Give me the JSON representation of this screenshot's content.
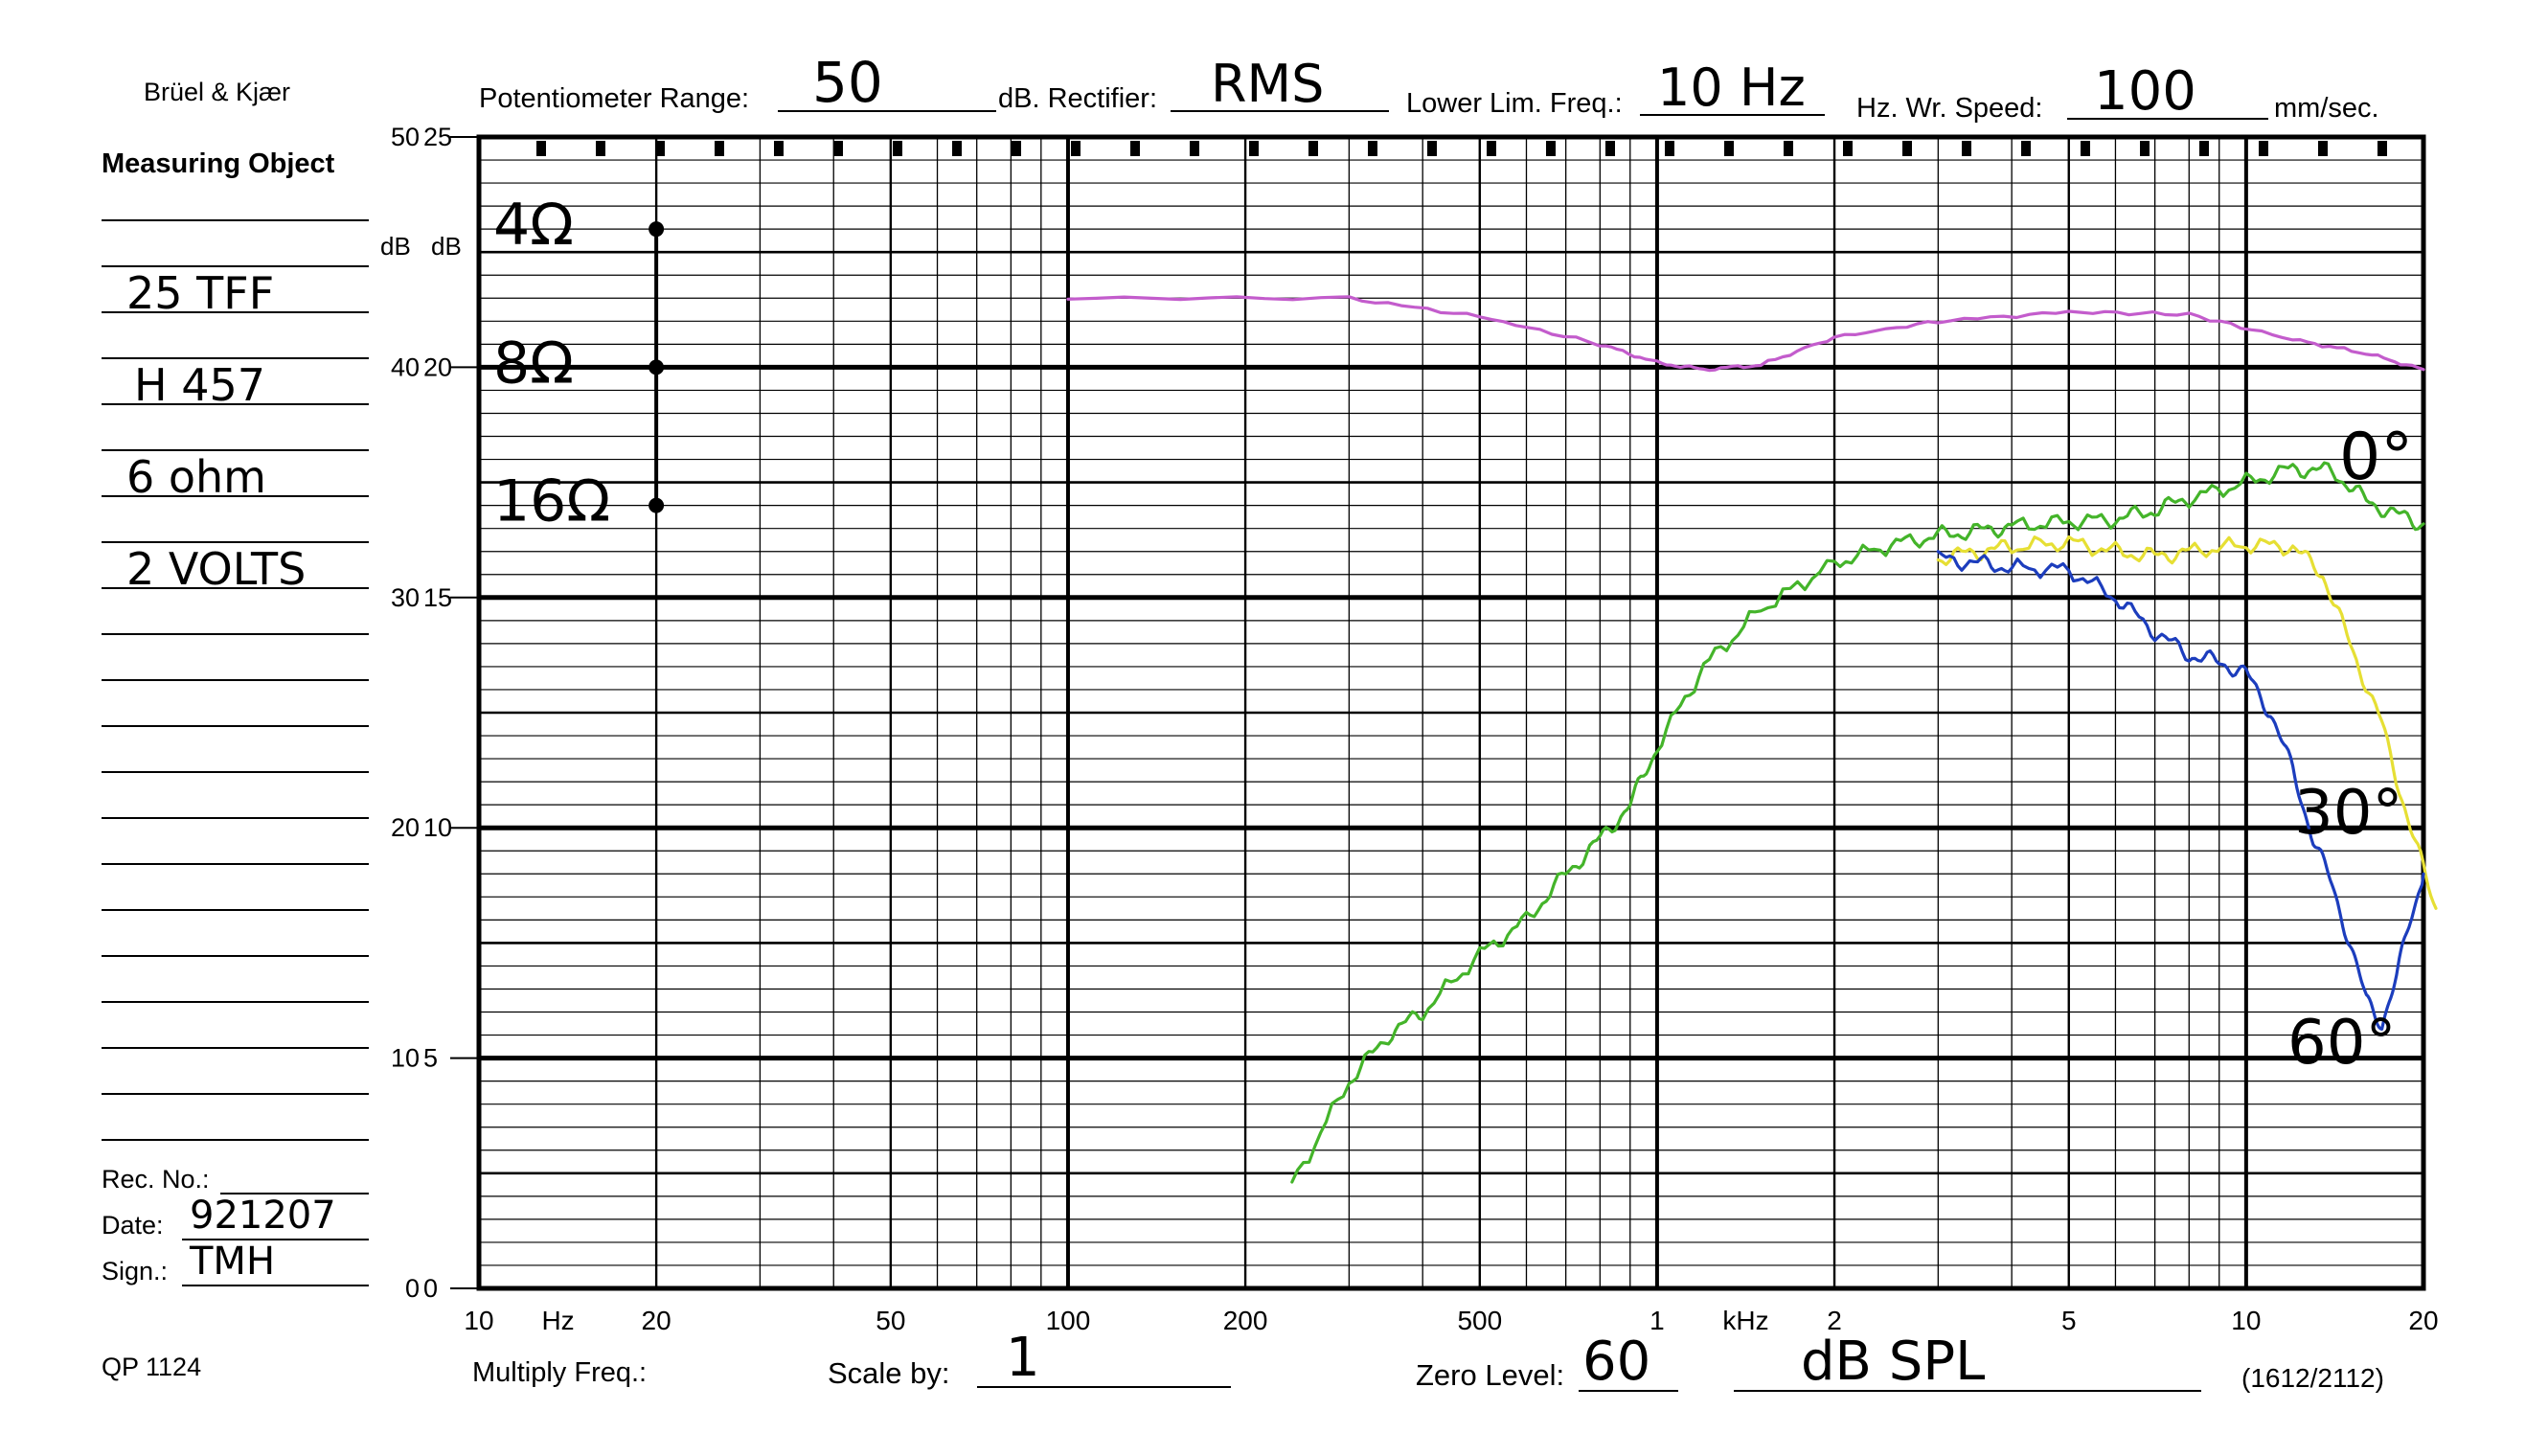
{
  "form": {
    "brand": "Brüel & Kjær",
    "measuring_object_label": "Measuring Object",
    "measuring_object_lines": [
      "25 TFF",
      "H 457",
      "6 ohm",
      "2 VOLTS"
    ],
    "rec_no_label": "Rec. No.:",
    "rec_no_value": "",
    "date_label": "Date:",
    "date_value": "921207",
    "sign_label": "Sign.:",
    "sign_value": "TMH",
    "form_code": "QP 1124",
    "potentiometer_label": "Potentiometer Range:",
    "potentiometer_value": "50",
    "db_rectifier_label": "dB. Rectifier:",
    "rectifier_value": "RMS",
    "lower_lim_label": "Lower Lim. Freq.:",
    "lower_lim_value": "10 Hz",
    "hz_wr_speed_label": "Hz. Wr. Speed:",
    "speed_value": "100",
    "speed_unit": "mm/sec.",
    "multiply_freq_label": "Multiply Freq.:",
    "scale_by_label": "Scale by:",
    "scale_by_value": "1",
    "zero_level_label": "Zero Level:",
    "zero_level_value": "60",
    "zero_level_unit": "dB SPL",
    "paper_code": "(1612/2112)"
  },
  "chart_data": {
    "type": "line",
    "x_scale": "log",
    "xlim": [
      10,
      20000
    ],
    "x_tick_labels": [
      "10",
      "Hz",
      "20",
      "50",
      "100",
      "200",
      "500",
      "1",
      "kHz",
      "2",
      "5",
      "10",
      "20"
    ],
    "y_left_unit": "dB",
    "y_left_ticks": [
      0,
      10,
      20,
      30,
      40,
      50
    ],
    "y_left_lim": [
      0,
      50
    ],
    "y_right_unit": "dB",
    "y_right_ticks": [
      0,
      5,
      10,
      15,
      20,
      25
    ],
    "y_right_lim": [
      0,
      25
    ],
    "impedance_markers": [
      {
        "label": "4Ω",
        "y": 46
      },
      {
        "label": "8Ω",
        "y": 40
      },
      {
        "label": "16Ω",
        "y": 34
      }
    ],
    "series": [
      {
        "name": "",
        "color": "#c35ccc",
        "x": [
          100,
          300,
          500,
          800,
          1000,
          1200,
          1500,
          2000,
          3000,
          5000,
          8000,
          12000,
          16000,
          20000
        ],
        "y": [
          43.0,
          43.0,
          42.2,
          41.0,
          40.2,
          39.9,
          40.1,
          41.3,
          42.0,
          42.4,
          42.3,
          41.2,
          40.6,
          39.9
        ]
      },
      {
        "name": "0°",
        "color": "#44b42a",
        "x": [
          240,
          300,
          350,
          400,
          500,
          600,
          700,
          800,
          900,
          1000,
          1200,
          1500,
          2000,
          2500,
          3000,
          3500,
          4000,
          5000,
          6000,
          7000,
          8000,
          10000,
          12000,
          14000,
          16000,
          18000,
          20000
        ],
        "y": [
          4.5,
          9.0,
          11.0,
          12.0,
          14.5,
          16.0,
          18.0,
          19.5,
          21.0,
          23.5,
          27.0,
          29.5,
          31.5,
          32.3,
          32.7,
          32.9,
          33.1,
          33.3,
          33.4,
          33.8,
          34.3,
          35.0,
          35.6,
          35.5,
          34.2,
          33.6,
          33.2
        ]
      },
      {
        "name": "30°",
        "color": "#e6df34",
        "x": [
          3000,
          3500,
          4000,
          5000,
          6000,
          7000,
          8000,
          10000,
          12000,
          13500,
          15000,
          17000,
          19000,
          21000
        ],
        "y": [
          31.7,
          32.0,
          32.2,
          32.4,
          32.0,
          31.8,
          32.0,
          32.3,
          32.2,
          31.0,
          28.0,
          24.5,
          20.0,
          16.5
        ]
      },
      {
        "name": "60°",
        "color": "#1c3dbd",
        "x": [
          3000,
          3500,
          4000,
          5000,
          6000,
          7000,
          8000,
          9000,
          10000,
          11000,
          12000,
          13000,
          14000,
          15000,
          16000,
          17000,
          18000,
          19000,
          20000
        ],
        "y": [
          31.7,
          31.5,
          31.3,
          31.2,
          30.0,
          28.5,
          27.5,
          27.2,
          26.7,
          25.0,
          22.5,
          19.5,
          17.5,
          15.0,
          12.5,
          11.5,
          13.5,
          16.0,
          18.0
        ]
      }
    ]
  }
}
